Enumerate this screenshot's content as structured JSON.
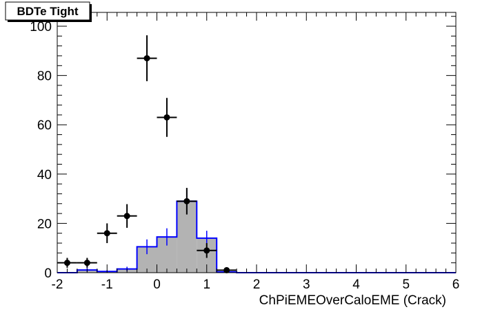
{
  "chart_data": {
    "type": "histogram",
    "title": "BDTe Tight",
    "x_label": "ChPiEMEOverCaloEME (Crack)",
    "bins": [
      -2,
      -1.6,
      -1.2,
      -0.8,
      -0.4,
      0,
      0.4,
      0.8,
      1.2,
      1.6,
      2,
      2.4,
      2.8,
      3.2,
      3.6,
      4,
      4.4,
      4.8,
      5.2,
      5.6,
      6
    ],
    "counts": [
      0,
      1.1,
      0.5,
      1.5,
      10.5,
      14.5,
      29,
      14,
      0.3,
      0,
      0,
      0,
      0,
      0,
      0,
      0,
      0,
      0,
      0,
      0
    ],
    "count_errors": [
      0,
      0.8,
      0.5,
      0.9,
      3,
      3.5,
      5,
      3,
      0.4,
      0,
      0,
      0,
      0,
      0,
      0,
      0,
      0,
      0,
      0,
      0
    ],
    "color": "#0000ff",
    "fill": "#b3b3b3",
    "data_points": {
      "x": [
        -1.8,
        -1.4,
        -1.0,
        -0.6,
        -0.2,
        0.2,
        0.6,
        1.0,
        1.4
      ],
      "values": [
        4,
        4,
        16,
        23,
        87,
        63,
        29,
        9,
        1
      ],
      "errors": [
        2,
        2,
        4,
        4.8,
        9.3,
        7.9,
        5.4,
        3,
        1
      ],
      "xerr": 0.2,
      "color": "#000000"
    },
    "xlim": [
      -2,
      6
    ],
    "ylim": [
      0,
      105.6
    ],
    "xticks": [
      -2,
      -1,
      0,
      1,
      2,
      3,
      4,
      5,
      6
    ],
    "yticks": [
      0,
      20,
      40,
      60,
      80,
      100
    ]
  }
}
